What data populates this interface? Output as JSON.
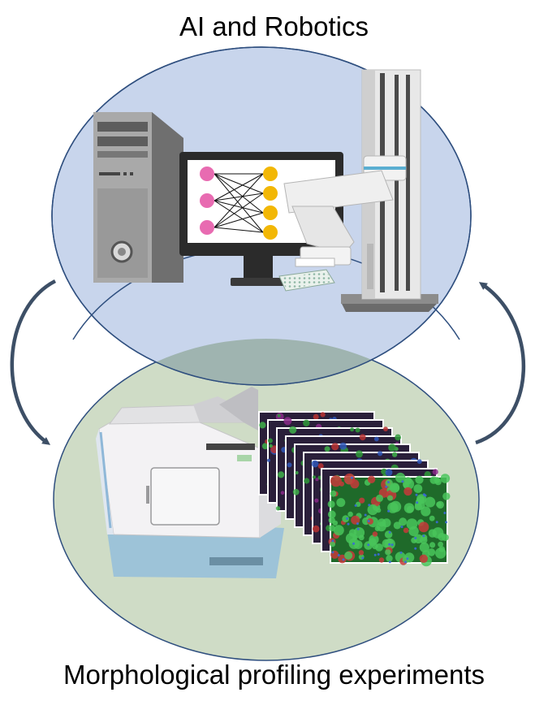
{
  "labels": {
    "top": "AI and Robotics",
    "bottom": "Morphological profiling experiments"
  },
  "colors": {
    "top_ellipse_fill": "#c8d5ec",
    "bottom_ellipse_fill": "#cfdcc6",
    "overlap_fill": "#9fb4b0",
    "ellipse_stroke": "#2f4f7f",
    "arrow": "#3d4f66",
    "input_node": "#e86bb1",
    "output_node": "#f2b705",
    "cell_green": "#2f9a3a"
  },
  "network": {
    "input_nodes": 3,
    "output_nodes": 4
  },
  "image_stack": {
    "count": 9
  }
}
